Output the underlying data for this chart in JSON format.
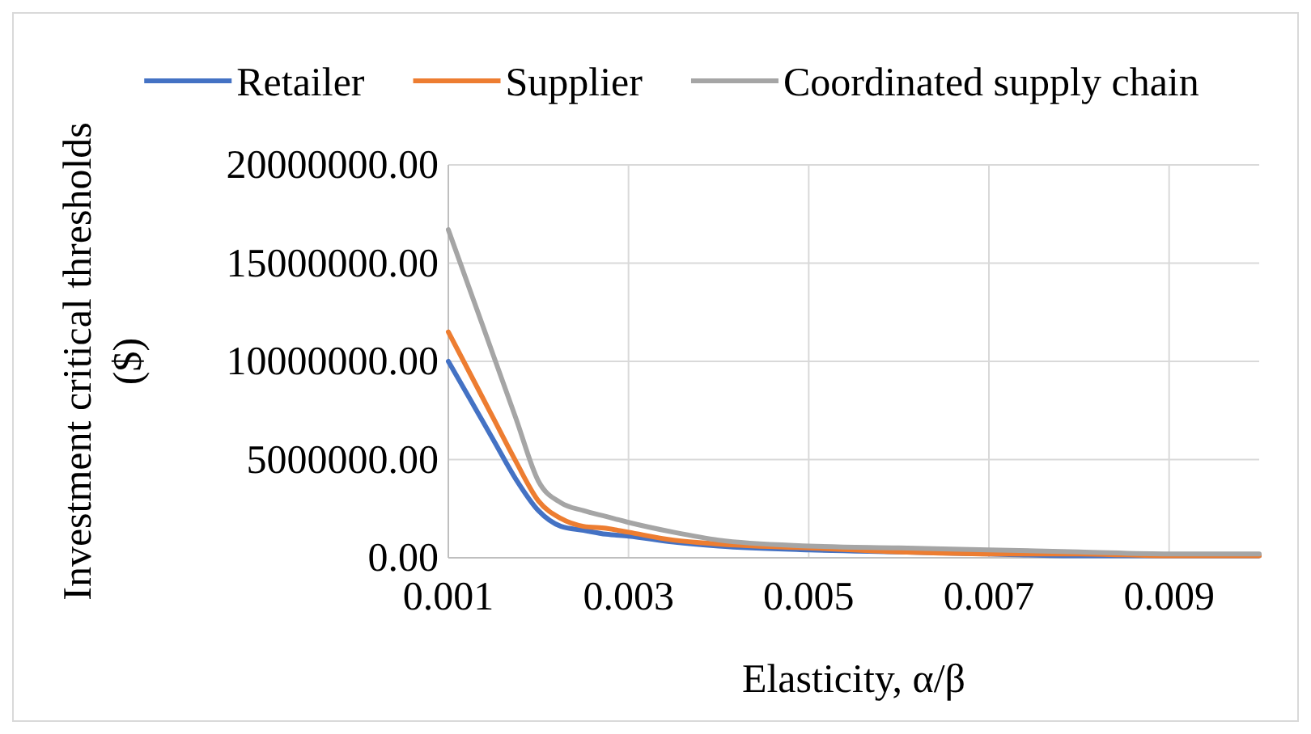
{
  "chart_data": {
    "type": "line",
    "xlabel": "Elasticity, α/β",
    "ylabel": "Investment critical thresholds ($)",
    "x": [
      0.001,
      0.00125,
      0.0015,
      0.00175,
      0.002,
      0.00225,
      0.0025,
      0.00275,
      0.003,
      0.0035,
      0.004,
      0.005,
      0.006,
      0.007,
      0.008,
      0.009,
      0.01
    ],
    "series": [
      {
        "name": "Retailer",
        "color": "#4472c4",
        "values": [
          10000000,
          8000000,
          6000000,
          4000000,
          2400000,
          1600000,
          1400000,
          1200000,
          1100000,
          800000,
          600000,
          400000,
          300000,
          200000,
          100000,
          100000,
          100000
        ]
      },
      {
        "name": "Supplier",
        "color": "#ed7d31",
        "values": [
          11500000,
          9300000,
          7100000,
          4900000,
          2900000,
          2000000,
          1600000,
          1500000,
          1300000,
          900000,
          700000,
          500000,
          300000,
          200000,
          200000,
          100000,
          100000
        ]
      },
      {
        "name": "Coordinated supply chain",
        "color": "#a5a5a5",
        "values": [
          16700000,
          13500000,
          10300000,
          7100000,
          3900000,
          2800000,
          2400000,
          2100000,
          1800000,
          1300000,
          900000,
          600000,
          500000,
          400000,
          300000,
          200000,
          200000
        ]
      }
    ],
    "xlim": [
      0.001,
      0.01
    ],
    "xticks": [
      0.001,
      0.003,
      0.005,
      0.007,
      0.009
    ],
    "ylim": [
      0,
      20000000
    ],
    "yticks": [
      {
        "value": 0,
        "label": "0.00"
      },
      {
        "value": 5000000,
        "label": "5000000.00"
      },
      {
        "value": 10000000,
        "label": "10000000.00"
      },
      {
        "value": 15000000,
        "label": "15000000.00"
      },
      {
        "value": 20000000,
        "label": "20000000.00"
      }
    ],
    "grid": true,
    "legend": "top",
    "marker": "none",
    "line_style": "solid"
  }
}
